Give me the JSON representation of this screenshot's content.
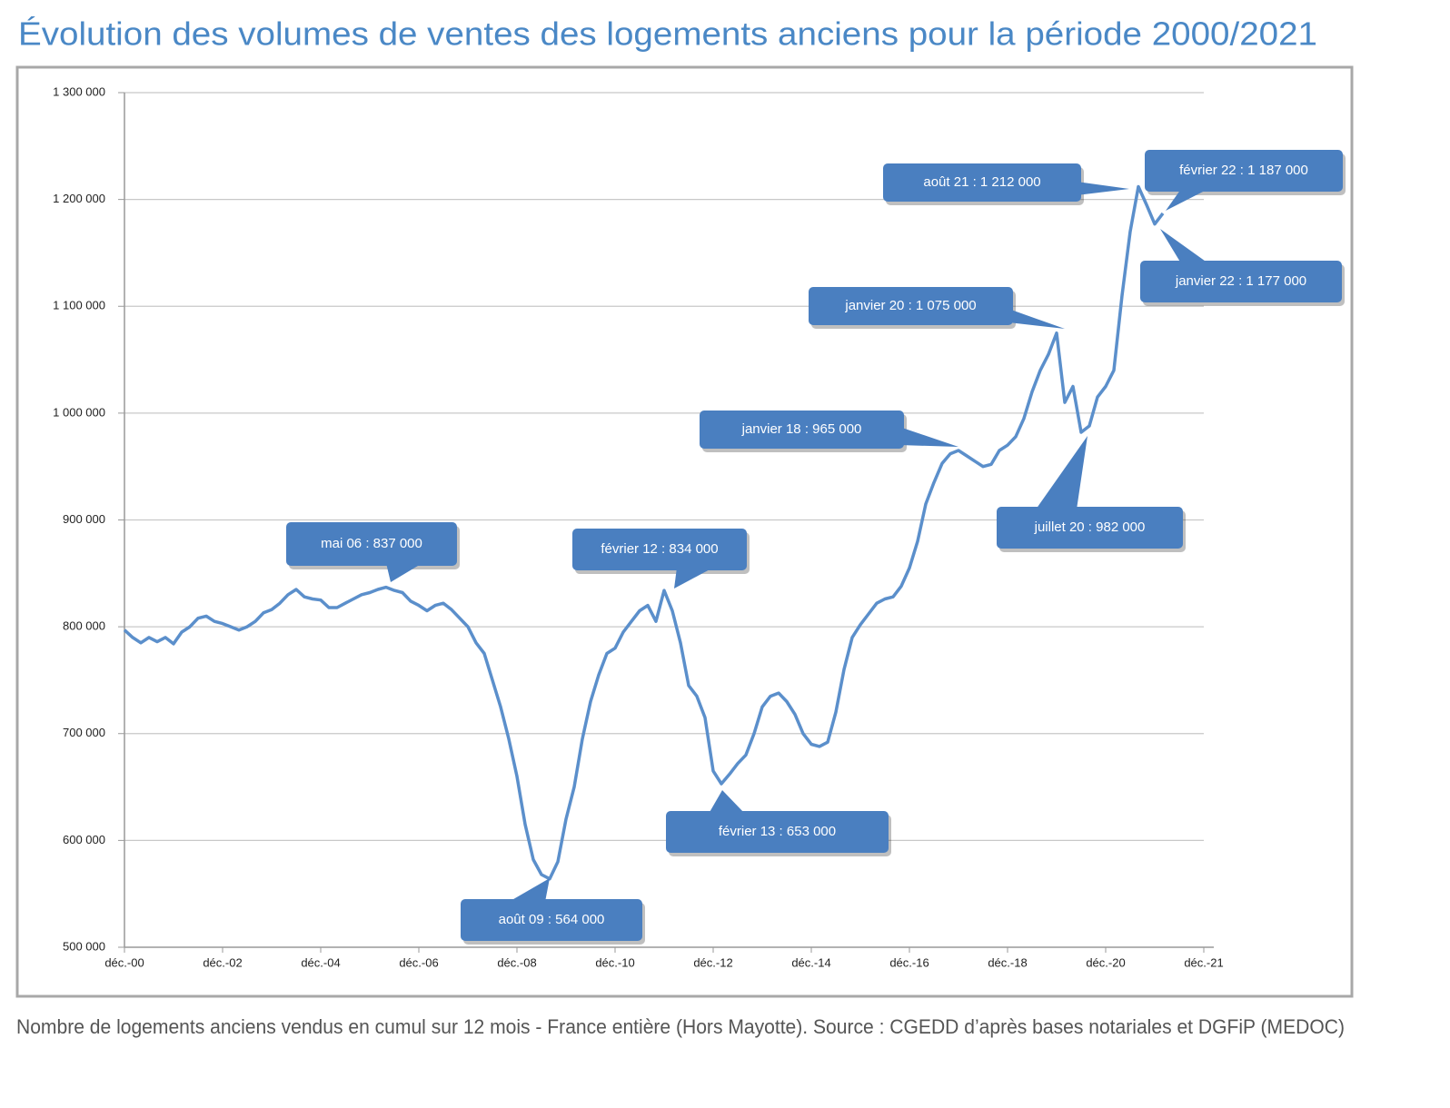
{
  "chart_data": {
    "type": "line",
    "title": "Évolution des volumes de ventes des logements anciens pour la période 2000/2021",
    "caption": "Nombre de logements anciens vendus en cumul sur 12 mois - France entière (Hors Mayotte). Source : CGEDD d’après bases notariales et DGFiP (MEDOC)",
    "categories": [
      "déc.-00",
      null,
      null,
      null,
      null,
      null,
      null,
      null,
      null,
      null,
      null,
      null,
      "déc.-02",
      null,
      null,
      null,
      null,
      null,
      null,
      null,
      null,
      null,
      null,
      null,
      "déc.-04",
      null,
      null,
      null,
      null,
      null,
      null,
      null,
      null,
      null,
      null,
      null,
      "déc.-06",
      null,
      null,
      null,
      null,
      null,
      null,
      null,
      null,
      null,
      null,
      null,
      "déc.-08",
      null,
      null,
      null,
      null,
      null,
      null,
      null,
      null,
      null,
      null,
      null,
      "déc.-10",
      null,
      null,
      null,
      null,
      null,
      null,
      null,
      null,
      null,
      null,
      null,
      "déc.-12",
      null,
      null,
      null,
      null,
      null,
      null,
      null,
      null,
      null,
      null,
      null,
      "déc.-14",
      null,
      null,
      null,
      null,
      null,
      null,
      null,
      null,
      null,
      null,
      null,
      "déc.-16",
      null,
      null,
      null,
      null,
      null,
      null,
      null,
      null,
      null,
      null,
      null,
      "déc.-18",
      null,
      null,
      null,
      null,
      null,
      null,
      null,
      null,
      null,
      null,
      null,
      "déc.-20",
      null,
      null,
      null,
      null,
      null,
      null,
      null,
      null,
      null,
      null,
      null,
      "déc.-21"
    ],
    "values": [
      797000,
      790000,
      785000,
      790000,
      786000,
      790000,
      784000,
      795000,
      800000,
      808000,
      810000,
      805000,
      803000,
      800000,
      797000,
      800000,
      805000,
      813000,
      816000,
      822000,
      830000,
      835000,
      828000,
      826000,
      825000,
      818000,
      818000,
      822000,
      826000,
      830000,
      832000,
      835000,
      837000,
      834000,
      832000,
      824000,
      820000,
      815000,
      820000,
      822000,
      816000,
      808000,
      800000,
      785000,
      775000,
      750000,
      725000,
      695000,
      660000,
      615000,
      582000,
      568000,
      564000,
      580000,
      620000,
      650000,
      695000,
      730000,
      755000,
      775000,
      780000,
      795000,
      805000,
      815000,
      820000,
      805000,
      834000,
      815000,
      785000,
      745000,
      735000,
      715000,
      665000,
      653000,
      662000,
      672000,
      680000,
      700000,
      725000,
      735000,
      738000,
      730000,
      718000,
      700000,
      690000,
      688000,
      692000,
      720000,
      760000,
      790000,
      802000,
      812000,
      822000,
      826000,
      828000,
      838000,
      855000,
      880000,
      915000,
      935000,
      953000,
      962000,
      965000,
      960000,
      955000,
      950000,
      952000,
      965000,
      970000,
      978000,
      995000,
      1020000,
      1040000,
      1055000,
      1075000,
      1010000,
      1025000,
      982000,
      988000,
      1015000,
      1025000,
      1040000,
      1110000,
      1170000,
      1212000,
      1195000,
      1177000,
      1187000,
      null,
      null,
      null,
      null,
      null
    ],
    "color": "#5b8fcb",
    "ylim": [
      500000,
      1300000
    ],
    "yticks": [
      {
        "value": 500000,
        "label": "500 000"
      },
      {
        "value": 600000,
        "label": "600 000"
      },
      {
        "value": 700000,
        "label": "700 000"
      },
      {
        "value": 800000,
        "label": "800 000"
      },
      {
        "value": 900000,
        "label": "900 000"
      },
      {
        "value": 1000000,
        "label": "1 000 000"
      },
      {
        "value": 1100000,
        "label": "1 100 000"
      },
      {
        "value": 1200000,
        "label": "1 200 000"
      },
      {
        "value": 1300000,
        "label": "1 300 000"
      }
    ],
    "grid": true,
    "annotations": [
      "mai 06 : 837 000",
      "août 09 : 564 000",
      "février 12 : 834 000",
      "février 13 : 653 000",
      "janvier 18 : 965 000",
      "janvier 20 : 1 075 000",
      "juillet 20 : 982 000",
      "août 21 : 1 212 000",
      "février 22 : 1 187 000",
      "janvier 22 : 1 177 000"
    ]
  }
}
